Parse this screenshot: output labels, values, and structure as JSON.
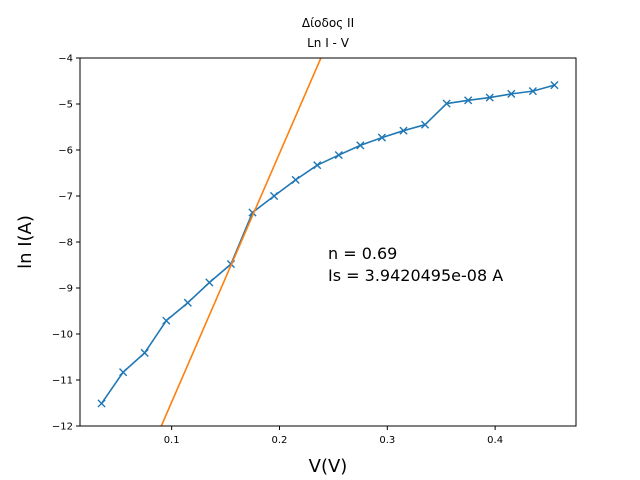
{
  "chart_data": {
    "type": "line",
    "title": "Δίοδος ΙΙ",
    "subtitle": "Ln I - V",
    "xlabel": "V(V)",
    "ylabel": "ln I(A)",
    "xlim": [
      0.015,
      0.475
    ],
    "ylim": [
      -12,
      -4
    ],
    "xticks": [
      0.1,
      0.2,
      0.3,
      0.4
    ],
    "xtick_labels": [
      "0.1",
      "0.2",
      "0.3",
      "0.4"
    ],
    "yticks": [
      -12,
      -11,
      -10,
      -9,
      -8,
      -7,
      -6,
      -5,
      -4
    ],
    "ytick_labels": [
      "−12",
      "−11",
      "−10",
      "−9",
      "−8",
      "−7",
      "−6",
      "−5",
      "−4"
    ],
    "grid": false,
    "series": [
      {
        "style": "line-with-x-markers",
        "color": "#1f77b4",
        "x": [
          0.035,
          0.055,
          0.075,
          0.095,
          0.115,
          0.135,
          0.155,
          0.175,
          0.195,
          0.215,
          0.235,
          0.255,
          0.275,
          0.295,
          0.315,
          0.335,
          0.355,
          0.375,
          0.395,
          0.415,
          0.435,
          0.455
        ],
        "y": [
          -11.51,
          -10.83,
          -10.41,
          -9.71,
          -9.32,
          -8.88,
          -8.48,
          -7.36,
          -7.0,
          -6.65,
          -6.33,
          -6.11,
          -5.9,
          -5.73,
          -5.58,
          -5.45,
          -4.99,
          -4.92,
          -4.86,
          -4.78,
          -4.72,
          -4.59
        ]
      },
      {
        "style": "line",
        "color": "#ff7f0e",
        "x": [
          0.0904,
          0.2384
        ],
        "y": [
          -12.0,
          -4.0
        ]
      }
    ],
    "annotations": [
      "n = 0.69",
      "Is = 3.9420495e-08 A"
    ]
  }
}
